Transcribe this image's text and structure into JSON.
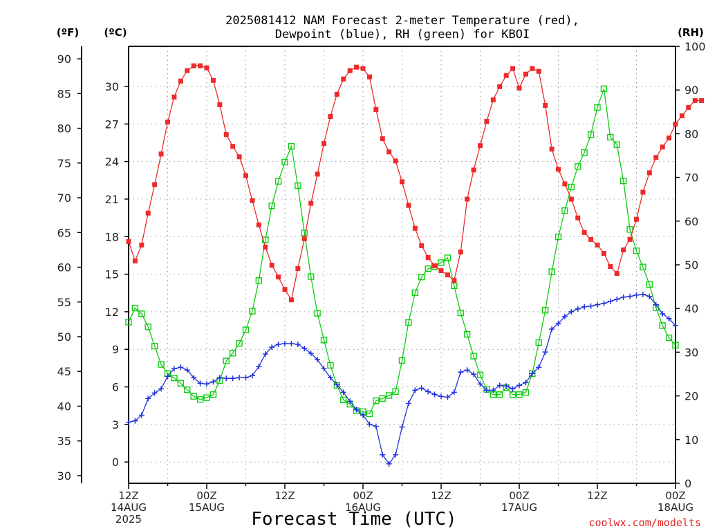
{
  "title_line1": "2025081412 NAM Forecast 2-meter Temperature (red),",
  "title_line2": "Dewpoint (blue), RH (green) for KBOI",
  "credit": "coolwx.com/modelts",
  "colors": {
    "temperature": "#ee2a2a",
    "dewpoint": "#2233dd",
    "rh": "#11cc11"
  },
  "chart_data": {
    "type": "line",
    "title": "2025081412 NAM Forecast 2-meter Temperature (red), Dewpoint (blue), RH (green) for KBOI",
    "xlabel": "Forecast Time (UTC)",
    "x_units": "forecast hour",
    "xlim": [
      0,
      84
    ],
    "grid": true,
    "y_axes": {
      "left_outer": {
        "unit": "(ºF)",
        "ticks": [
          30,
          35,
          40,
          45,
          50,
          55,
          60,
          65,
          70,
          75,
          80,
          85,
          90
        ],
        "lim": [
          28.9,
          91.8
        ]
      },
      "left_inner": {
        "unit": "(ºC)",
        "ticks": [
          0,
          3,
          6,
          9,
          12,
          15,
          18,
          21,
          24,
          27,
          30
        ],
        "lim": [
          -1.7,
          33.2
        ]
      },
      "right": {
        "unit": "(RH)",
        "ticks": [
          0,
          10,
          20,
          30,
          40,
          50,
          60,
          70,
          80,
          90,
          100
        ],
        "lim": [
          0,
          100
        ]
      }
    },
    "x_ticks": [
      {
        "hour": 0,
        "lines": [
          "12Z",
          "14AUG",
          "2025"
        ]
      },
      {
        "hour": 12,
        "lines": [
          "00Z",
          "15AUG"
        ]
      },
      {
        "hour": 24,
        "lines": [
          "12Z"
        ]
      },
      {
        "hour": 36,
        "lines": [
          "00Z",
          "16AUG"
        ]
      },
      {
        "hour": 48,
        "lines": [
          "12Z"
        ]
      },
      {
        "hour": 60,
        "lines": [
          "00Z",
          "17AUG"
        ]
      },
      {
        "hour": 72,
        "lines": [
          "12Z"
        ]
      },
      {
        "hour": 84,
        "lines": [
          "00Z",
          "18AUG"
        ]
      }
    ],
    "series": [
      {
        "name": "2-meter Temperature",
        "unit": "°F",
        "color": "#ee2a2a",
        "marker": "filled-square",
        "points": [
          [
            0,
            63.7
          ],
          [
            1,
            60.9
          ],
          [
            2,
            63.2
          ],
          [
            3,
            67.8
          ],
          [
            4,
            71.9
          ],
          [
            5,
            76.3
          ],
          [
            6,
            80.9
          ],
          [
            7,
            84.5
          ],
          [
            8,
            86.8
          ],
          [
            9,
            88.3
          ],
          [
            10,
            89.0
          ],
          [
            11,
            89.0
          ],
          [
            12,
            88.7
          ],
          [
            13,
            86.9
          ],
          [
            14,
            83.4
          ],
          [
            15,
            79.1
          ],
          [
            16,
            77.4
          ],
          [
            17,
            75.9
          ],
          [
            18,
            73.2
          ],
          [
            19,
            69.6
          ],
          [
            20,
            66.1
          ],
          [
            21,
            62.9
          ],
          [
            22,
            60.3
          ],
          [
            23,
            58.6
          ],
          [
            24,
            56.8
          ],
          [
            25,
            55.3
          ],
          [
            26,
            59.8
          ],
          [
            27,
            64.1
          ],
          [
            28,
            69.2
          ],
          [
            29,
            73.4
          ],
          [
            30,
            77.8
          ],
          [
            31,
            81.7
          ],
          [
            32,
            84.9
          ],
          [
            33,
            87.1
          ],
          [
            34,
            88.3
          ],
          [
            35,
            88.8
          ],
          [
            36,
            88.6
          ],
          [
            37,
            87.4
          ],
          [
            38,
            82.7
          ],
          [
            39,
            78.5
          ],
          [
            40,
            76.6
          ],
          [
            41,
            75.3
          ],
          [
            42,
            72.3
          ],
          [
            43,
            68.9
          ],
          [
            44,
            65.6
          ],
          [
            45,
            63.1
          ],
          [
            46,
            61.4
          ],
          [
            47,
            60.2
          ],
          [
            48,
            59.5
          ],
          [
            49,
            58.9
          ],
          [
            50,
            58.1
          ],
          [
            51,
            62.2
          ],
          [
            52,
            69.8
          ],
          [
            53,
            74.0
          ],
          [
            54,
            77.5
          ],
          [
            55,
            81.0
          ],
          [
            56,
            84.1
          ],
          [
            57,
            86.0
          ],
          [
            58,
            87.6
          ],
          [
            59,
            88.6
          ],
          [
            60,
            85.8
          ],
          [
            61,
            87.8
          ],
          [
            62,
            88.6
          ],
          [
            63,
            88.2
          ],
          [
            64,
            83.3
          ],
          [
            65,
            77.0
          ],
          [
            66,
            74.1
          ],
          [
            67,
            72.0
          ],
          [
            68,
            69.8
          ],
          [
            69,
            67.1
          ],
          [
            70,
            65.0
          ],
          [
            71,
            64.0
          ],
          [
            72,
            63.2
          ],
          [
            73,
            62.0
          ],
          [
            74,
            60.1
          ],
          [
            75,
            59.1
          ],
          [
            76,
            62.5
          ],
          [
            77,
            64.0
          ],
          [
            78,
            66.9
          ],
          [
            79,
            70.8
          ],
          [
            80,
            73.6
          ],
          [
            81,
            75.8
          ],
          [
            82,
            77.3
          ],
          [
            83,
            78.6
          ],
          [
            84,
            80.6
          ],
          [
            85,
            81.8
          ],
          [
            86,
            83.0
          ],
          [
            87,
            84.0
          ],
          [
            88,
            84.0
          ]
        ]
      },
      {
        "name": "Dewpoint",
        "unit": "°F",
        "color": "#2233dd",
        "marker": "plus",
        "points": [
          [
            0,
            37.7
          ],
          [
            1,
            37.9
          ],
          [
            2,
            38.7
          ],
          [
            3,
            41.1
          ],
          [
            4,
            41.9
          ],
          [
            5,
            42.5
          ],
          [
            6,
            44.3
          ],
          [
            7,
            45.4
          ],
          [
            8,
            45.6
          ],
          [
            9,
            45.2
          ],
          [
            10,
            44.1
          ],
          [
            11,
            43.3
          ],
          [
            12,
            43.2
          ],
          [
            13,
            43.5
          ],
          [
            14,
            44.1
          ],
          [
            15,
            44.0
          ],
          [
            16,
            44.0
          ],
          [
            17,
            44.1
          ],
          [
            18,
            44.1
          ],
          [
            19,
            44.4
          ],
          [
            20,
            45.7
          ],
          [
            21,
            47.5
          ],
          [
            22,
            48.5
          ],
          [
            23,
            48.9
          ],
          [
            24,
            49.0
          ],
          [
            25,
            49.0
          ],
          [
            26,
            48.9
          ],
          [
            27,
            48.3
          ],
          [
            28,
            47.6
          ],
          [
            29,
            46.7
          ],
          [
            30,
            45.4
          ],
          [
            31,
            44.1
          ],
          [
            32,
            43.1
          ],
          [
            33,
            42.0
          ],
          [
            34,
            40.7
          ],
          [
            35,
            39.5
          ],
          [
            36,
            38.7
          ],
          [
            37,
            37.4
          ],
          [
            38,
            37.1
          ],
          [
            39,
            33.0
          ],
          [
            40,
            31.7
          ],
          [
            41,
            33.0
          ],
          [
            42,
            37.0
          ],
          [
            43,
            40.4
          ],
          [
            44,
            42.3
          ],
          [
            45,
            42.6
          ],
          [
            46,
            42.1
          ],
          [
            47,
            41.7
          ],
          [
            48,
            41.4
          ],
          [
            49,
            41.3
          ],
          [
            50,
            42.0
          ],
          [
            51,
            44.9
          ],
          [
            52,
            45.2
          ],
          [
            53,
            44.6
          ],
          [
            54,
            43.2
          ],
          [
            55,
            42.3
          ],
          [
            56,
            42.3
          ],
          [
            57,
            43.0
          ],
          [
            58,
            42.9
          ],
          [
            59,
            42.5
          ],
          [
            60,
            43.0
          ],
          [
            61,
            43.4
          ],
          [
            62,
            44.7
          ],
          [
            63,
            45.6
          ],
          [
            64,
            47.8
          ],
          [
            65,
            51.1
          ],
          [
            66,
            51.9
          ],
          [
            67,
            52.9
          ],
          [
            68,
            53.6
          ],
          [
            69,
            54.0
          ],
          [
            70,
            54.3
          ],
          [
            71,
            54.4
          ],
          [
            72,
            54.6
          ],
          [
            73,
            54.8
          ],
          [
            74,
            55.1
          ],
          [
            75,
            55.4
          ],
          [
            76,
            55.7
          ],
          [
            77,
            55.8
          ],
          [
            78,
            56.0
          ],
          [
            79,
            56.1
          ],
          [
            80,
            55.8
          ],
          [
            81,
            54.6
          ],
          [
            82,
            53.3
          ],
          [
            83,
            52.6
          ],
          [
            84,
            51.6
          ]
        ]
      },
      {
        "name": "RH",
        "unit": "%",
        "color": "#11cc11",
        "marker": "open-square",
        "points": [
          [
            0,
            36.9
          ],
          [
            1,
            40.1
          ],
          [
            2,
            38.8
          ],
          [
            3,
            35.8
          ],
          [
            4,
            31.4
          ],
          [
            5,
            27.2
          ],
          [
            6,
            25.1
          ],
          [
            7,
            24.1
          ],
          [
            8,
            22.9
          ],
          [
            9,
            21.4
          ],
          [
            10,
            19.9
          ],
          [
            11,
            19.2
          ],
          [
            12,
            19.6
          ],
          [
            13,
            20.3
          ],
          [
            14,
            23.5
          ],
          [
            15,
            28.0
          ],
          [
            16,
            29.8
          ],
          [
            17,
            32.0
          ],
          [
            18,
            35.1
          ],
          [
            19,
            39.4
          ],
          [
            20,
            46.4
          ],
          [
            21,
            55.7
          ],
          [
            22,
            63.5
          ],
          [
            23,
            69.1
          ],
          [
            24,
            73.5
          ],
          [
            25,
            77.1
          ],
          [
            26,
            68.1
          ],
          [
            27,
            57.3
          ],
          [
            28,
            47.3
          ],
          [
            29,
            38.9
          ],
          [
            30,
            32.8
          ],
          [
            31,
            27.0
          ],
          [
            32,
            22.4
          ],
          [
            33,
            19.1
          ],
          [
            34,
            18.1
          ],
          [
            35,
            16.6
          ],
          [
            36,
            16.4
          ],
          [
            37,
            15.9
          ],
          [
            38,
            18.9
          ],
          [
            39,
            19.4
          ],
          [
            40,
            20.1
          ],
          [
            41,
            21.0
          ],
          [
            42,
            28.1
          ],
          [
            43,
            36.8
          ],
          [
            44,
            43.6
          ],
          [
            45,
            47.2
          ],
          [
            46,
            49.1
          ],
          [
            47,
            49.6
          ],
          [
            48,
            50.5
          ],
          [
            49,
            51.6
          ],
          [
            50,
            45.2
          ],
          [
            51,
            39.0
          ],
          [
            52,
            34.1
          ],
          [
            53,
            29.1
          ],
          [
            54,
            24.8
          ],
          [
            55,
            21.5
          ],
          [
            56,
            20.3
          ],
          [
            57,
            20.3
          ],
          [
            58,
            21.9
          ],
          [
            59,
            20.3
          ],
          [
            60,
            20.3
          ],
          [
            61,
            20.8
          ],
          [
            62,
            25.1
          ],
          [
            63,
            32.2
          ],
          [
            64,
            39.6
          ],
          [
            65,
            48.4
          ],
          [
            66,
            56.4
          ],
          [
            67,
            62.4
          ],
          [
            68,
            67.8
          ],
          [
            69,
            72.5
          ],
          [
            70,
            75.7
          ],
          [
            71,
            79.8
          ],
          [
            72,
            86.0
          ],
          [
            73,
            90.3
          ],
          [
            74,
            79.2
          ],
          [
            75,
            77.5
          ],
          [
            76,
            69.2
          ],
          [
            77,
            58.1
          ],
          [
            78,
            53.2
          ],
          [
            79,
            49.5
          ],
          [
            80,
            45.5
          ],
          [
            81,
            40.2
          ],
          [
            82,
            36.1
          ],
          [
            83,
            33.3
          ],
          [
            84,
            31.6
          ]
        ]
      }
    ]
  }
}
